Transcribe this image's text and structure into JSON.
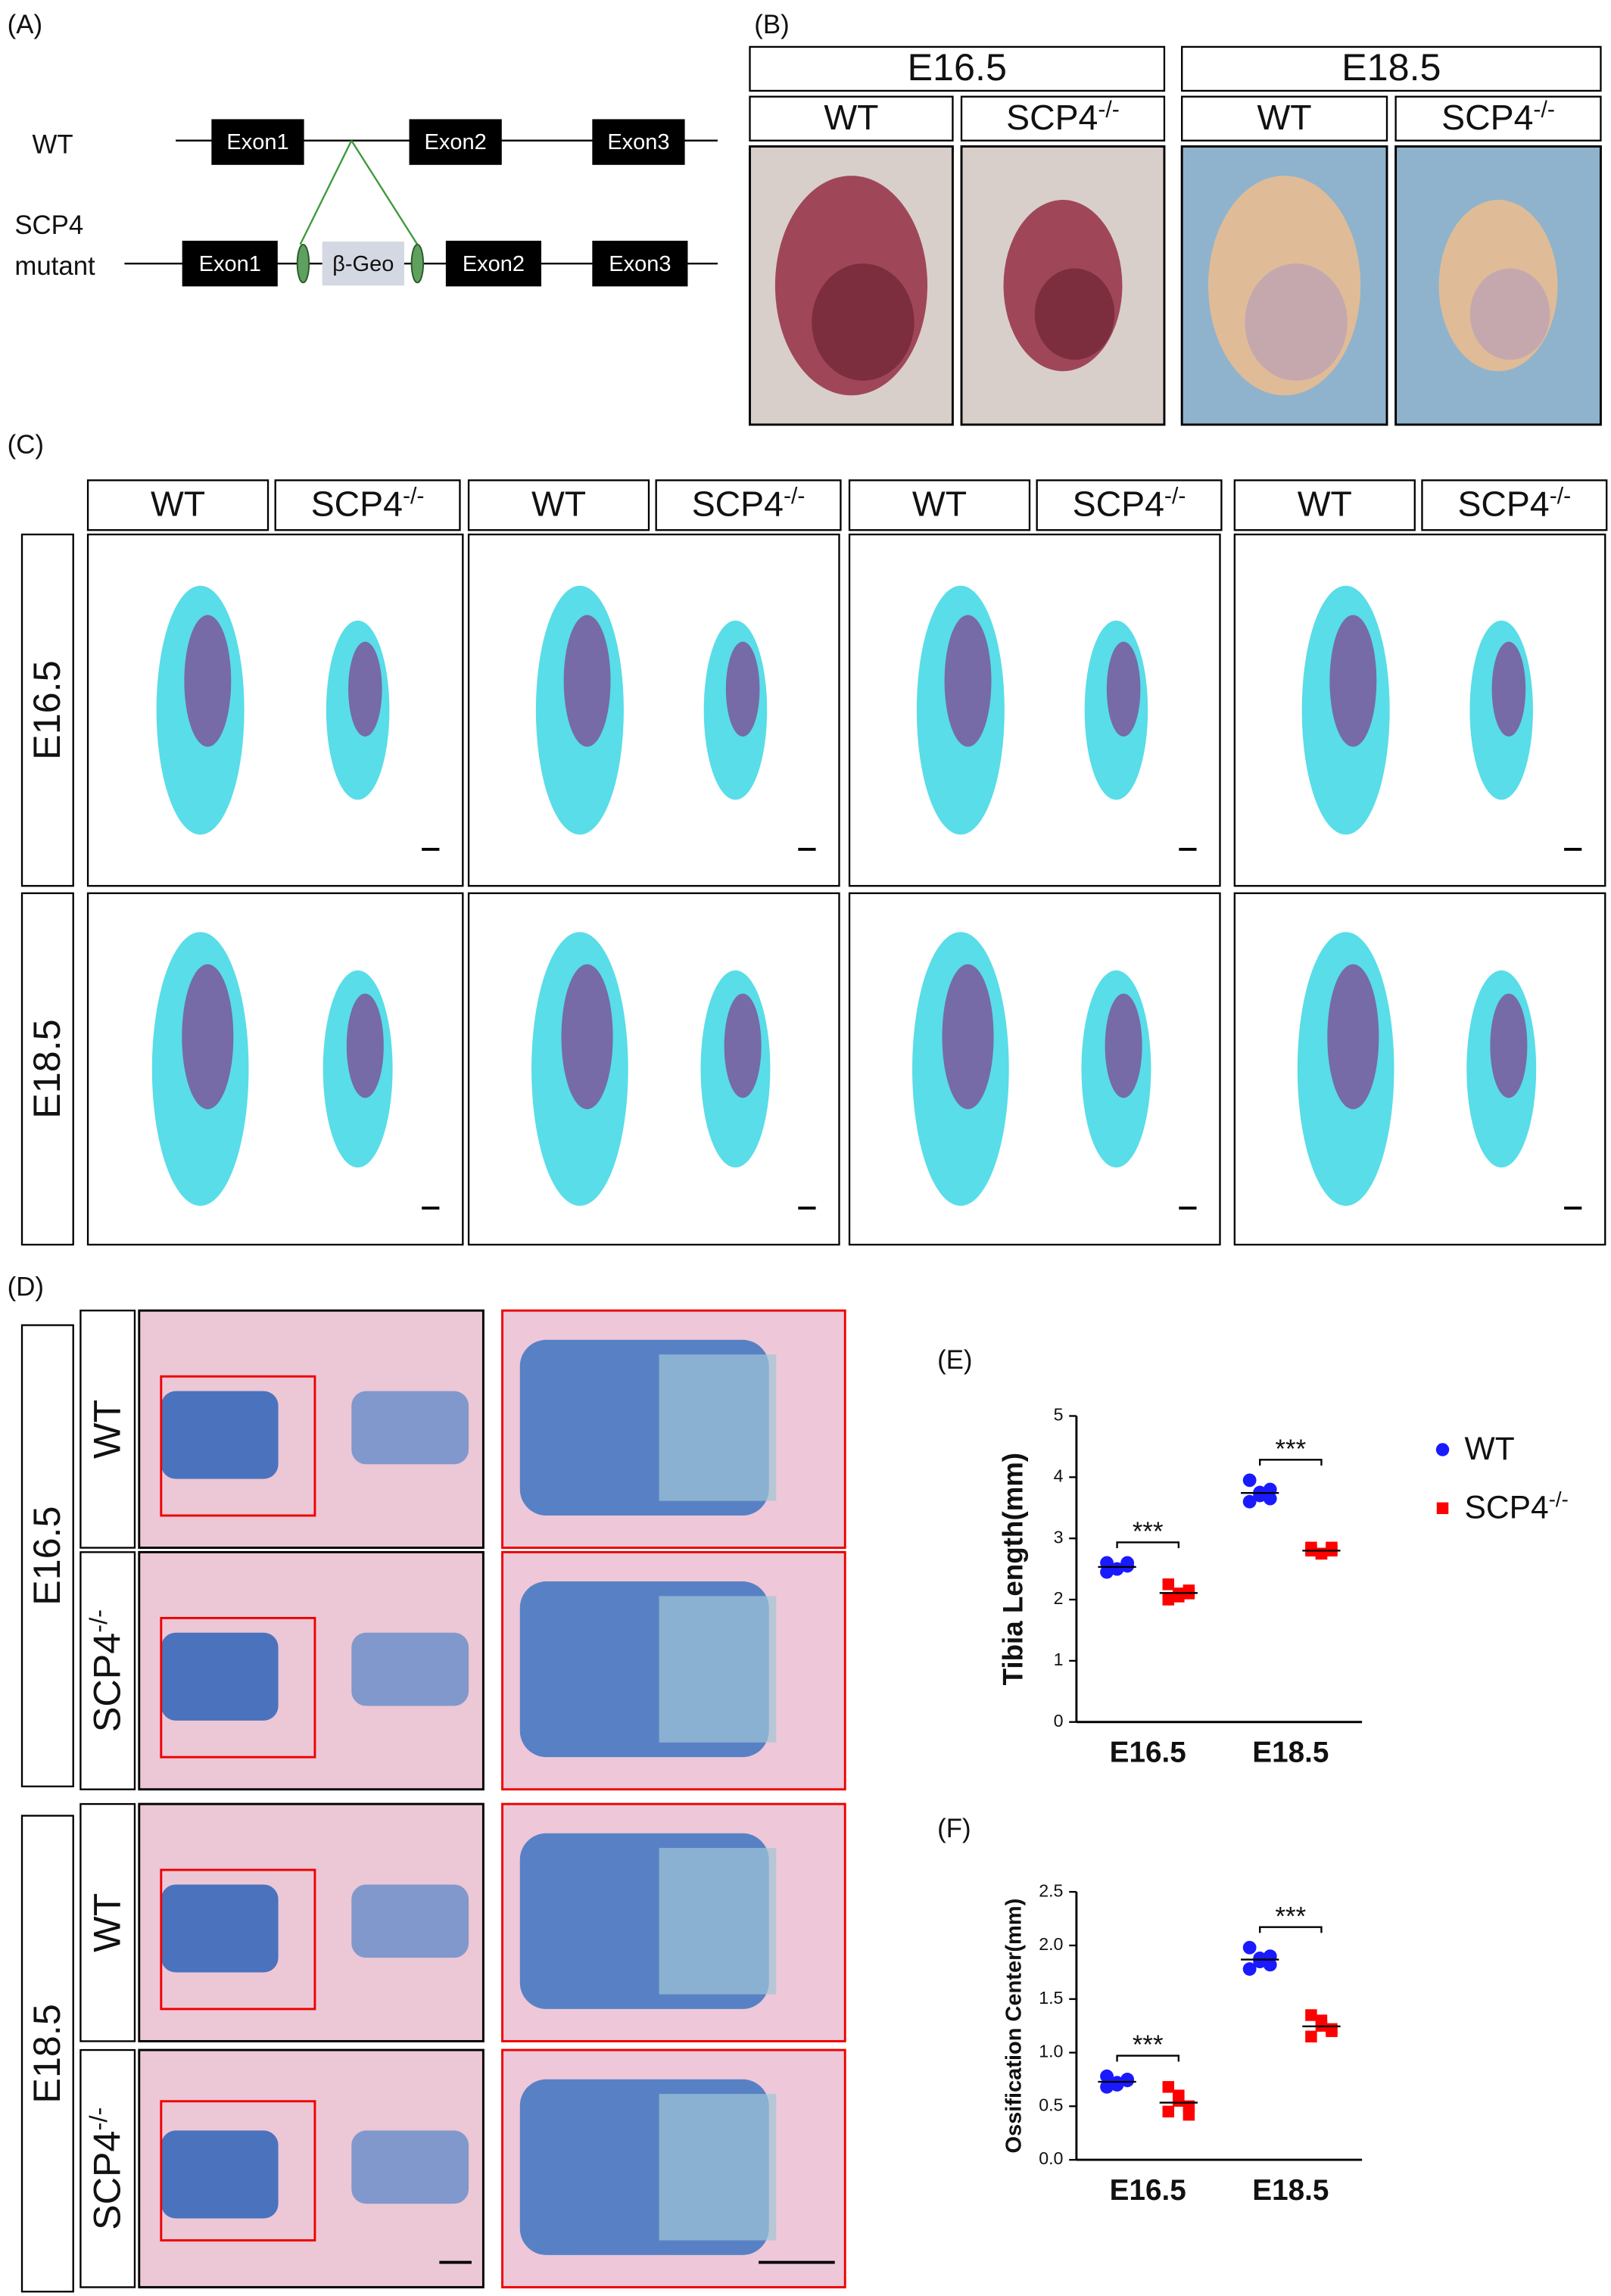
{
  "figure": {
    "panel_a": {
      "label": "(A)",
      "wt": "WT",
      "mutant": [
        "SCP4",
        "mutant"
      ],
      "exons": [
        "Exon1",
        "Exon2",
        "Exon3"
      ],
      "cassette": "β-Geo"
    },
    "panel_b": {
      "label": "(B)",
      "stages": [
        "E16.5",
        "E18.5"
      ],
      "genotypes": [
        "WT",
        "SCP4-/-"
      ]
    },
    "panel_c": {
      "label": "(C)",
      "stages": [
        "E16.5",
        "E18.5"
      ],
      "genotypes": [
        "WT",
        "SCP4-/-"
      ]
    },
    "panel_d": {
      "label": "(D)",
      "stages": [
        "E16.5",
        "E18.5"
      ],
      "genotypes": [
        "WT",
        "SCP4-/-"
      ]
    }
  },
  "chart_data": [
    {
      "type": "dot",
      "label": "(E)",
      "y_label": "Tibia Length(mm)",
      "categories": [
        "E16.5",
        "E18.5"
      ],
      "ylim": [
        0,
        5
      ],
      "yticks": [
        0,
        1,
        2,
        3,
        4,
        5
      ],
      "legend": true,
      "series": [
        {
          "name": "WT",
          "color": "#1a1aff",
          "marker": "circle",
          "values": [
            [
              2.6,
              2.5,
              2.55,
              2.45,
              2.5,
              2.6
            ],
            [
              3.95,
              3.75,
              3.8,
              3.6,
              3.7,
              3.65
            ]
          ]
        },
        {
          "name": "SCP4-/-",
          "color": "#ff0000",
          "marker": "square",
          "values": [
            [
              2.25,
              2.1,
              2.15,
              2.0,
              2.05,
              2.1
            ],
            [
              2.85,
              2.75,
              2.8,
              2.8,
              2.75,
              2.85
            ]
          ]
        }
      ],
      "annotations": [
        "***",
        "***"
      ]
    },
    {
      "type": "dot",
      "label": "(F)",
      "y_label": "Ossification Center(mm)",
      "categories": [
        "E16.5",
        "E18.5"
      ],
      "ylim": [
        0,
        2.5
      ],
      "yticks": [
        {
          "value": 0,
          "label": "0.0"
        },
        0.5,
        {
          "value": 1,
          "label": "1.0"
        },
        1.5,
        {
          "value": 2,
          "label": "2.0"
        },
        2.5
      ],
      "legend": false,
      "series": [
        {
          "color": "#1a1aff",
          "marker": "circle",
          "values": [
            [
              0.78,
              0.72,
              0.75,
              0.68,
              0.7,
              0.74
            ],
            [
              1.98,
              1.85,
              1.9,
              1.78,
              1.88,
              1.82
            ]
          ]
        },
        {
          "color": "#ff0000",
          "marker": "square",
          "values": [
            [
              0.68,
              0.55,
              0.5,
              0.45,
              0.6,
              0.42
            ],
            [
              1.35,
              1.25,
              1.2,
              1.15,
              1.3,
              1.22
            ]
          ]
        }
      ],
      "annotations": [
        "***",
        "***"
      ]
    }
  ]
}
